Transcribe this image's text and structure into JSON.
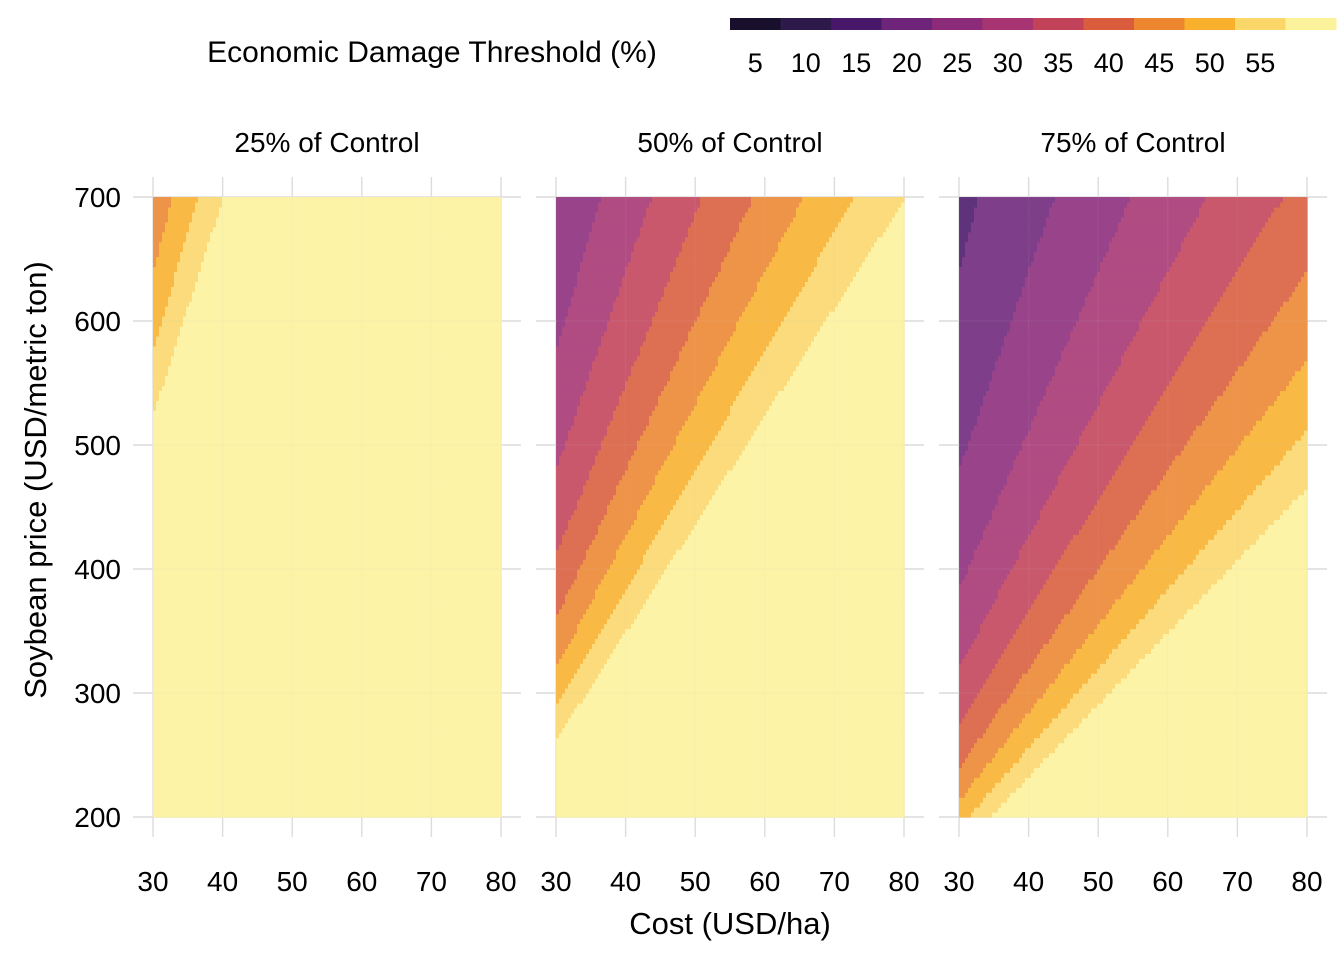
{
  "chart_data": {
    "type": "heatmap",
    "title": "",
    "xlabel": "Cost (USD/ha)",
    "ylabel": "Soybean price (USD/metric ton)",
    "x_ticks": [
      30,
      40,
      50,
      60,
      70,
      80
    ],
    "y_ticks": [
      200,
      300,
      400,
      500,
      600,
      700
    ],
    "xlim": [
      30,
      80
    ],
    "ylim": [
      200,
      700
    ],
    "grid": true,
    "legend": {
      "title": "Economic Damage Threshold (%)",
      "position": "top",
      "labels": [
        "5",
        "10",
        "15",
        "20",
        "25",
        "30",
        "35",
        "40",
        "45",
        "50",
        "55"
      ],
      "colors": [
        "#170f2c",
        "#2d1a4a",
        "#48176a",
        "#6d2479",
        "#8b2b7a",
        "#a73473",
        "#c2425a",
        "#d95c3c",
        "#ec862f",
        "#f9b02c",
        "#fbd76a",
        "#fcf29c"
      ]
    },
    "bin_width": 5,
    "formula_note": "",
    "panels": [
      {
        "label": "25% of Control",
        "control": 0.25
      },
      {
        "label": "50% of Control",
        "control": 0.5
      },
      {
        "label": "75% of Control",
        "control": 0.75
      }
    ]
  }
}
